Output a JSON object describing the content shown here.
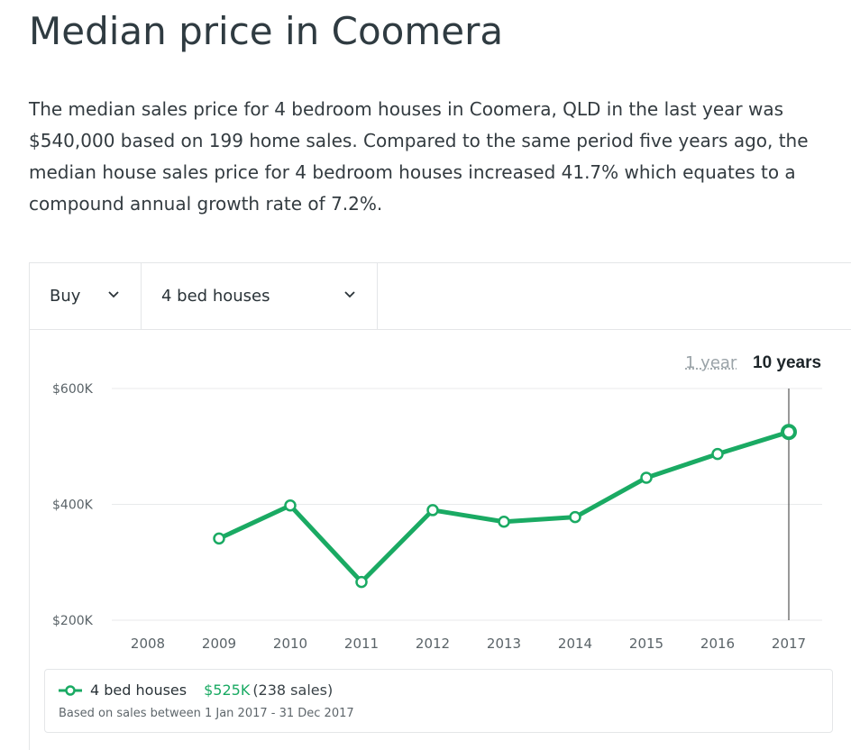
{
  "page": {
    "title": "Median price in Coomera",
    "description": "The median sales price for 4 bedroom houses in Coomera, QLD in the last year was $540,000 based on 199 home sales. Compared to the same period five years ago, the median house sales price for 4 bedroom houses increased 41.7% which equates to a compound annual growth rate of 7.2%."
  },
  "filters": {
    "transaction": {
      "selected": "Buy",
      "icon": "chevron-down-icon"
    },
    "property": {
      "selected": "4 bed houses",
      "icon": "chevron-down-icon"
    }
  },
  "range_toggle": {
    "one_year": "1 year",
    "ten_years": "10 years",
    "active": "10 years"
  },
  "legend": {
    "series": "4 bed houses",
    "value": "$525K",
    "sales": "(238 sales)",
    "note": "Based on sales between 1 Jan 2017 - 31 Dec 2017"
  },
  "colors": {
    "line": "#1aaa63",
    "grid": "#e8eaeb",
    "cursor": "#555555"
  },
  "chart_data": {
    "type": "line",
    "x": [
      "2008",
      "2009",
      "2010",
      "2011",
      "2012",
      "2013",
      "2014",
      "2015",
      "2016",
      "2017"
    ],
    "series": [
      {
        "name": "4 bed houses",
        "values": [
          null,
          341,
          398,
          266,
          390,
          370,
          378,
          446,
          487,
          525
        ]
      }
    ],
    "y_ticks": [
      {
        "value": 600,
        "label": "$600K"
      },
      {
        "value": 400,
        "label": "$400K"
      },
      {
        "value": 200,
        "label": "$200K"
      }
    ],
    "ylim": [
      200,
      600
    ],
    "grid": true,
    "highlighted_x": "2017"
  }
}
